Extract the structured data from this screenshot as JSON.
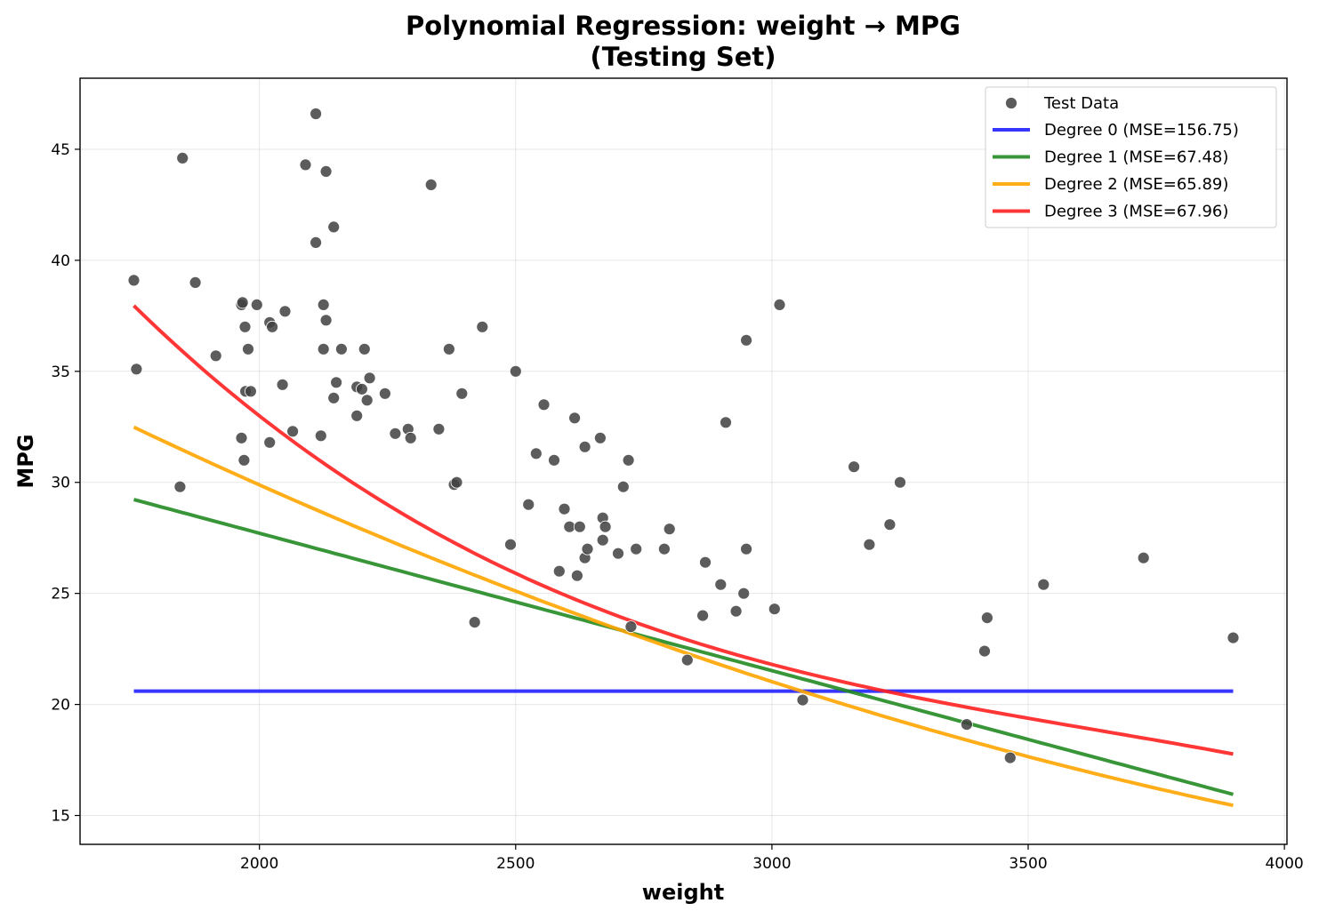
{
  "chart_data": {
    "type": "scatter",
    "title_line1": "Polynomial Regression: weight → MPG",
    "title_line2": "(Testing Set)",
    "xlabel": "weight",
    "ylabel": "MPG",
    "xlim": [
      1650,
      4005
    ],
    "ylim": [
      13.7,
      48.2
    ],
    "xticks": [
      2000,
      2500,
      3000,
      3500,
      4000
    ],
    "yticks": [
      15,
      20,
      25,
      30,
      35,
      40,
      45
    ],
    "grid": true,
    "legend_position": "top-right",
    "scatter": {
      "name": "Test Data",
      "color": "#404040",
      "points": [
        [
          1755,
          39.1
        ],
        [
          1760,
          35.1
        ],
        [
          1845,
          29.8
        ],
        [
          1850,
          44.6
        ],
        [
          1875,
          39.0
        ],
        [
          1915,
          35.7
        ],
        [
          1965,
          38.0
        ],
        [
          1967,
          38.1
        ],
        [
          1965,
          32.0
        ],
        [
          1970,
          31.0
        ],
        [
          1972,
          37.0
        ],
        [
          1973,
          34.1
        ],
        [
          1978,
          36.0
        ],
        [
          1983,
          34.1
        ],
        [
          1995,
          38.0
        ],
        [
          2020,
          37.2
        ],
        [
          2020,
          31.8
        ],
        [
          2025,
          37.0
        ],
        [
          2045,
          34.4
        ],
        [
          2050,
          37.7
        ],
        [
          2065,
          32.3
        ],
        [
          2090,
          44.3
        ],
        [
          2110,
          46.6
        ],
        [
          2110,
          40.8
        ],
        [
          2120,
          32.1
        ],
        [
          2125,
          38.0
        ],
        [
          2125,
          36.0
        ],
        [
          2130,
          44.0
        ],
        [
          2130,
          37.3
        ],
        [
          2145,
          41.5
        ],
        [
          2145,
          33.8
        ],
        [
          2150,
          34.5
        ],
        [
          2160,
          36.0
        ],
        [
          2190,
          34.3
        ],
        [
          2190,
          33.0
        ],
        [
          2200,
          34.2
        ],
        [
          2205,
          36.0
        ],
        [
          2210,
          33.7
        ],
        [
          2215,
          34.7
        ],
        [
          2245,
          34.0
        ],
        [
          2265,
          32.2
        ],
        [
          2290,
          32.4
        ],
        [
          2295,
          32.0
        ],
        [
          2335,
          43.4
        ],
        [
          2350,
          32.4
        ],
        [
          2370,
          36.0
        ],
        [
          2380,
          29.9
        ],
        [
          2385,
          30.0
        ],
        [
          2395,
          34.0
        ],
        [
          2420,
          23.7
        ],
        [
          2435,
          37.0
        ],
        [
          2490,
          27.2
        ],
        [
          2500,
          35.0
        ],
        [
          2525,
          29.0
        ],
        [
          2540,
          31.3
        ],
        [
          2555,
          33.5
        ],
        [
          2575,
          31.0
        ],
        [
          2585,
          26.0
        ],
        [
          2595,
          28.8
        ],
        [
          2605,
          28.0
        ],
        [
          2615,
          32.9
        ],
        [
          2620,
          25.8
        ],
        [
          2625,
          28.0
        ],
        [
          2635,
          31.6
        ],
        [
          2635,
          26.6
        ],
        [
          2640,
          27.0
        ],
        [
          2665,
          32.0
        ],
        [
          2670,
          28.4
        ],
        [
          2670,
          27.4
        ],
        [
          2675,
          28.0
        ],
        [
          2700,
          26.8
        ],
        [
          2710,
          29.8
        ],
        [
          2720,
          31.0
        ],
        [
          2725,
          23.5
        ],
        [
          2735,
          27.0
        ],
        [
          2790,
          27.0
        ],
        [
          2800,
          27.9
        ],
        [
          2835,
          22.0
        ],
        [
          2865,
          24.0
        ],
        [
          2870,
          26.4
        ],
        [
          2900,
          25.4
        ],
        [
          2910,
          32.7
        ],
        [
          2930,
          24.2
        ],
        [
          2945,
          25.0
        ],
        [
          2950,
          36.4
        ],
        [
          2950,
          27.0
        ],
        [
          3005,
          24.3
        ],
        [
          3015,
          38.0
        ],
        [
          3060,
          20.2
        ],
        [
          3160,
          30.7
        ],
        [
          3190,
          27.2
        ],
        [
          3230,
          28.1
        ],
        [
          3250,
          30.0
        ],
        [
          3380,
          19.1
        ],
        [
          3415,
          22.4
        ],
        [
          3420,
          23.9
        ],
        [
          3465,
          17.6
        ],
        [
          3530,
          25.4
        ],
        [
          3725,
          26.6
        ],
        [
          3900,
          23.0
        ]
      ]
    },
    "series": [
      {
        "name": "Degree 0 (MSE=156.75)",
        "color": "#2020ff",
        "coefficients": [
          20.6
        ]
      },
      {
        "name": "Degree 1 (MSE=67.48)",
        "color": "#228b22",
        "coefficients": [
          40.09,
          -0.00619
        ]
      },
      {
        "name": "Degree 2 (MSE=65.89)",
        "color": "#ffa500",
        "coefficients": [
          56.03,
          -0.01588,
          1.404e-06
        ]
      },
      {
        "name": "Degree 3 (MSE=67.96)",
        "color": "#ff2020",
        "coefficients": [
          117.45,
          -0.0734,
          1.908e-05,
          -1.747e-09
        ]
      }
    ],
    "curve_x_range": [
      1755,
      3900
    ]
  }
}
